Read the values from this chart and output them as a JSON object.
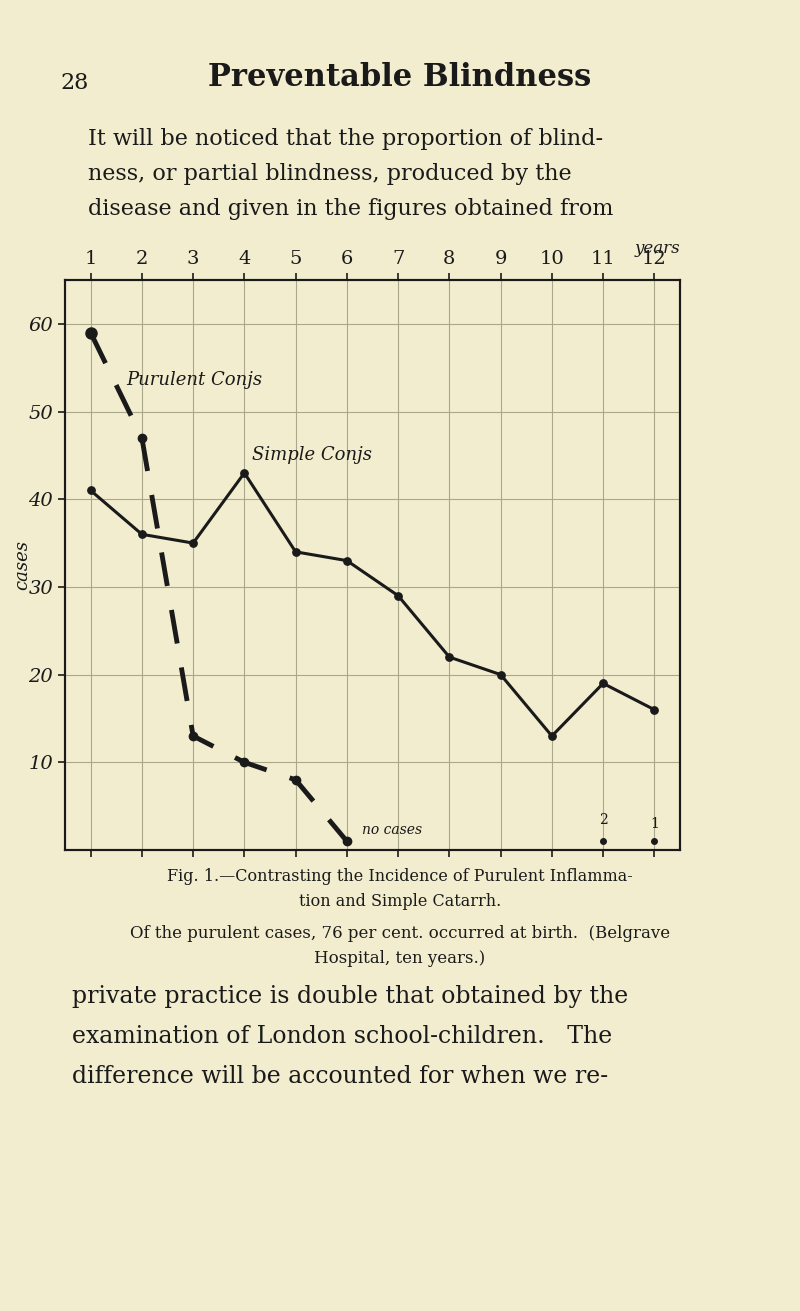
{
  "background_color": "#f2edcf",
  "title_text": "Preventable Blindness",
  "page_number": "28",
  "header_text": "It will be noticed that the proportion of blind-\nness, or partial blindness, produced by the\ndisease and given in the figures obtained from",
  "footer_caption_line1": "Fig. 1.—Contrasting the Incidence of Purulent Inflamma-",
  "footer_caption_line2": "tion and Simple Catarrh.",
  "footer_sub": "Of the purulent cases, 76 per cent. occurred at birth.  (Belgrave\nHospital, ten years.)",
  "bottom_text_line1": "private practice is double that obtained by the",
  "bottom_text_line2": "examination of London school-children.   The",
  "bottom_text_line3": "difference will be accounted for when we re-",
  "x_labels": [
    "1",
    "2",
    "3",
    "4",
    "5",
    "6",
    "7",
    "8",
    "9",
    "10",
    "11",
    "12"
  ],
  "x_label_top": "years",
  "ylabel_text": "cases",
  "ylim": [
    0,
    65
  ],
  "yticks": [
    10,
    20,
    30,
    40,
    50,
    60
  ],
  "simple_x": [
    1,
    2,
    3,
    4,
    5,
    6,
    7,
    8,
    9,
    10,
    11,
    12
  ],
  "simple_y": [
    41,
    36,
    35,
    43,
    34,
    33,
    29,
    22,
    20,
    13,
    19,
    16
  ],
  "purulent_x": [
    1,
    2,
    3,
    4,
    5,
    6
  ],
  "purulent_y": [
    59,
    47,
    13,
    10,
    8,
    1
  ],
  "purulent_label": "Purulent Conjs",
  "simple_label": "Simple Conjs",
  "no_cases_text": "no cases",
  "line_color": "#1a1a1a",
  "grid_color": "#aaa88a",
  "axis_color": "#1a1a1a",
  "chart_bg": "#f2edcf"
}
